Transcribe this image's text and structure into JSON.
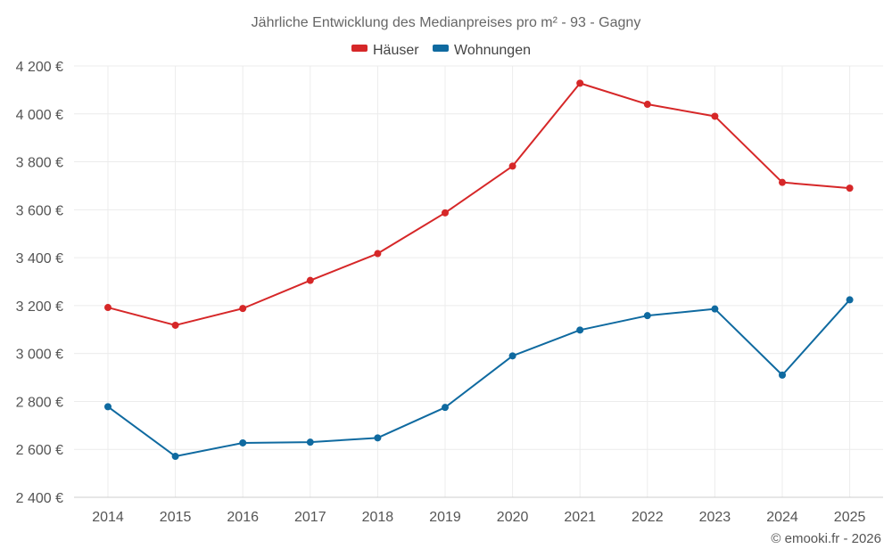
{
  "chart_data": {
    "type": "line",
    "title": "Jährliche Entwicklung des Medianpreises pro m² - 93 - Gagny",
    "categories": [
      "2014",
      "2015",
      "2016",
      "2017",
      "2018",
      "2019",
      "2020",
      "2021",
      "2022",
      "2023",
      "2024",
      "2025"
    ],
    "ylim": [
      2400,
      4200
    ],
    "yticks": [
      2400,
      2600,
      2800,
      3000,
      3200,
      3400,
      3600,
      3800,
      4000,
      4200
    ],
    "ytick_labels": [
      "2 400 €",
      "2 600 €",
      "2 800 €",
      "3 000 €",
      "3 200 €",
      "3 400 €",
      "3 600 €",
      "3 800 €",
      "4 000 €",
      "4 200 €"
    ],
    "grid": true,
    "legend_position": "top-center",
    "series": [
      {
        "name": "Häuser",
        "color": "#d62728",
        "values": [
          3192,
          3118,
          3188,
          3305,
          3417,
          3587,
          3782,
          4128,
          4040,
          3990,
          3714,
          3690
        ]
      },
      {
        "name": "Wohnungen",
        "color": "#0f6aa0",
        "values": [
          2778,
          2571,
          2627,
          2630,
          2648,
          2775,
          2990,
          3098,
          3158,
          3186,
          2910,
          3224
        ]
      }
    ]
  },
  "credit": "© emooki.fr - 2026"
}
